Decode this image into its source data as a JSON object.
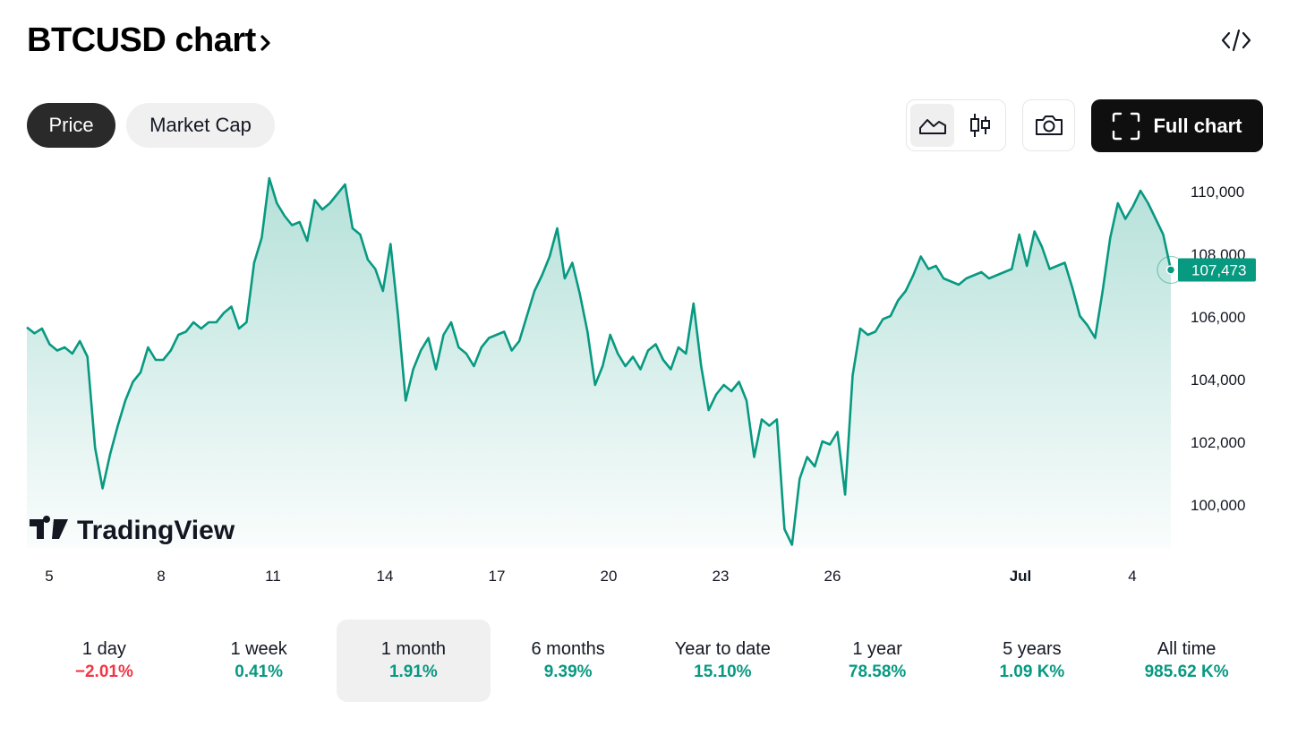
{
  "header": {
    "title": "BTCUSD chart",
    "embed_icon": "code-brackets-icon"
  },
  "toolbar": {
    "tabs": [
      {
        "label": "Price",
        "active": true
      },
      {
        "label": "Market Cap",
        "active": false
      }
    ],
    "chart_styles": [
      {
        "icon": "area-chart-icon",
        "active": true
      },
      {
        "icon": "candlestick-icon",
        "active": false
      }
    ],
    "snapshot_icon": "camera-icon",
    "full_chart_label": "Full chart",
    "full_chart_icon": "fullscreen-corners-icon"
  },
  "watermark": "TradingView",
  "colors": {
    "accent": "#089981",
    "negative": "#f23645",
    "dark_button": "#0f0f0f",
    "active_pill": "#2a2a2a"
  },
  "chart_data": {
    "type": "area",
    "symbol": "BTCUSD",
    "x_ticks": [
      "5",
      "8",
      "11",
      "14",
      "17",
      "20",
      "23",
      "26",
      "Jul",
      "4"
    ],
    "y_ticks": [
      "110,000",
      "108,000",
      "106,000",
      "104,000",
      "102,000",
      "100,000"
    ],
    "ylim": [
      98500,
      110600
    ],
    "last_value": 107473,
    "last_value_label": "107,473",
    "series": [
      {
        "values": [
          105640,
          105450,
          105600,
          105100,
          104900,
          105000,
          104800,
          105200,
          104700,
          101800,
          100500,
          101600,
          102500,
          103300,
          103900,
          104200,
          105000,
          104600,
          104600,
          104900,
          105400,
          105500,
          105800,
          105600,
          105800,
          105800,
          106100,
          106300,
          105600,
          105800,
          107700,
          108500,
          110400,
          109600,
          109200,
          108900,
          109000,
          108400,
          109700,
          109400,
          109600,
          109900,
          110200,
          108800,
          108600,
          107800,
          107500,
          106800,
          108300,
          106000,
          103300,
          104300,
          104900,
          105300,
          104300,
          105400,
          105800,
          105000,
          104800,
          104400,
          105000,
          105300,
          105400,
          105500,
          104900,
          105200,
          106000,
          106800,
          107300,
          107900,
          108800,
          107200,
          107700,
          106700,
          105500,
          103800,
          104400,
          105400,
          104800,
          104400,
          104700,
          104300,
          104900,
          105100,
          104600,
          104300,
          105000,
          104800,
          106400,
          104400,
          103000,
          103500,
          103800,
          103600,
          103900,
          103300,
          101500,
          102700,
          102500,
          102700,
          99200,
          98700,
          100800,
          101500,
          101200,
          102000,
          101900,
          102300,
          100300,
          104100,
          105600,
          105400,
          105500,
          105900,
          106000,
          106500,
          106800,
          107300,
          107900,
          107500,
          107600,
          107200,
          107100,
          107000,
          107200,
          107300,
          107400,
          107200,
          107300,
          107400,
          107500,
          108600,
          107600,
          108700,
          108200,
          107500,
          107600,
          107700,
          106900,
          106000,
          105700,
          105300,
          106800,
          108500,
          109600,
          109100,
          109500,
          110000,
          109600,
          109100,
          108600,
          107473
        ]
      }
    ],
    "grid": false
  },
  "periods": [
    {
      "label": "1 day",
      "value": "−2.01%",
      "sign": "neg",
      "active": false
    },
    {
      "label": "1 week",
      "value": "0.41%",
      "sign": "pos",
      "active": false
    },
    {
      "label": "1 month",
      "value": "1.91%",
      "sign": "pos",
      "active": true
    },
    {
      "label": "6 months",
      "value": "9.39%",
      "sign": "pos",
      "active": false
    },
    {
      "label": "Year to date",
      "value": "15.10%",
      "sign": "pos",
      "active": false
    },
    {
      "label": "1 year",
      "value": "78.58%",
      "sign": "pos",
      "active": false
    },
    {
      "label": "5 years",
      "value": "1.09 K%",
      "sign": "pos",
      "active": false
    },
    {
      "label": "All time",
      "value": "985.62 K%",
      "sign": "pos",
      "active": false
    }
  ]
}
